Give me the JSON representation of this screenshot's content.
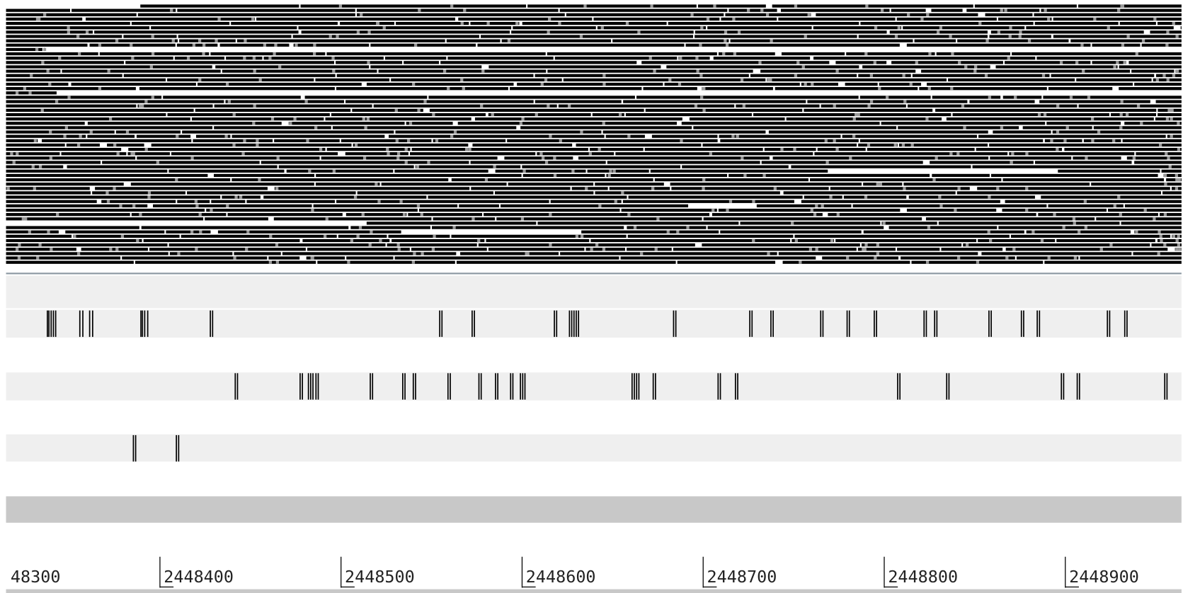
{
  "ruler": {
    "labels": [
      "48300",
      "2448400",
      "2448500",
      "2448600",
      "2448700",
      "2448800",
      "2448900"
    ]
  }
}
